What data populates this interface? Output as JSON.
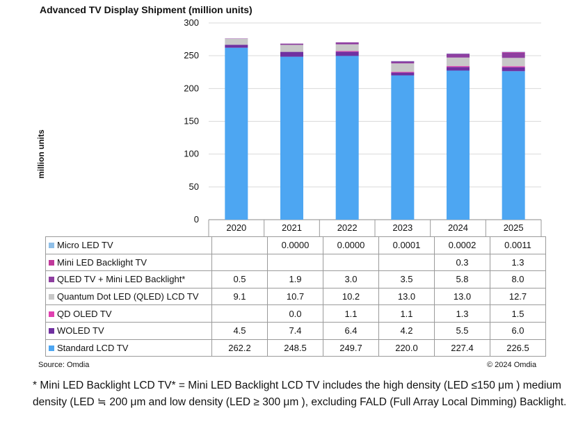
{
  "chart_data": {
    "type": "bar",
    "stacked": true,
    "title": "Advanced TV Display Shipment (million units)",
    "ylabel": "million units",
    "xlabel": "",
    "ylim": [
      0,
      300
    ],
    "yticks": [
      0,
      50,
      100,
      150,
      200,
      250,
      300
    ],
    "categories": [
      "2020",
      "2021",
      "2022",
      "2023",
      "2024",
      "2025"
    ],
    "series": [
      {
        "name": "Standard LCD TV",
        "color": "#4da6f2",
        "values": [
          262.2,
          248.5,
          249.7,
          220.0,
          227.4,
          226.5
        ],
        "labels": [
          "262.2",
          "248.5",
          "249.7",
          "220.0",
          "227.4",
          "226.5"
        ]
      },
      {
        "name": "WOLED TV",
        "color": "#7030a0",
        "values": [
          4.5,
          7.4,
          6.4,
          4.2,
          5.5,
          6.0
        ],
        "labels": [
          "4.5",
          "7.4",
          "6.4",
          "4.2",
          "5.5",
          "6.0"
        ]
      },
      {
        "name": "QD OLED TV",
        "color": "#e040b0",
        "values": [
          null,
          0.0,
          1.1,
          1.1,
          1.3,
          1.5
        ],
        "labels": [
          "",
          "0.0",
          "1.1",
          "1.1",
          "1.3",
          "1.5"
        ]
      },
      {
        "name": "Quantum Dot LED (QLED) LCD TV",
        "color": "#c8c8c8",
        "values": [
          9.1,
          10.7,
          10.2,
          13.0,
          13.0,
          12.7
        ],
        "labels": [
          "9.1",
          "10.7",
          "10.2",
          "13.0",
          "13.0",
          "12.7"
        ]
      },
      {
        "name": "QLED TV + Mini LED Backlight*",
        "color": "#8e3fa0",
        "values": [
          0.5,
          1.9,
          3.0,
          3.5,
          5.8,
          8.0
        ],
        "labels": [
          "0.5",
          "1.9",
          "3.0",
          "3.5",
          "5.8",
          "8.0"
        ]
      },
      {
        "name": "Mini LED Backlight TV",
        "color": "#c0399a",
        "values": [
          null,
          null,
          null,
          null,
          0.3,
          1.3
        ],
        "labels": [
          "",
          "",
          "",
          "",
          "0.3",
          "1.3"
        ]
      },
      {
        "name": "Micro LED TV",
        "color": "#8fbfe8",
        "values": [
          null,
          0.0,
          0.0,
          0.0001,
          0.0002,
          0.0011
        ],
        "labels": [
          "",
          "0.0000",
          "0.0000",
          "0.0001",
          "0.0002",
          "0.0011"
        ]
      }
    ],
    "table_row_order": [
      "Micro LED TV",
      "Mini LED Backlight TV",
      "QLED TV + Mini LED Backlight*",
      "Quantum Dot LED (QLED) LCD TV",
      "QD OLED TV",
      "WOLED TV",
      "Standard LCD TV"
    ]
  },
  "source": "Source: Omdia",
  "copyright": "© 2024 Omdia",
  "footnote": "* Mini LED Backlight LCD TV* = Mini LED Backlight LCD TV includes the high density (LED ≤150 μm ) medium density (LED ≒ 200 μm and low density (LED ≥ 300 μm ), excluding FALD (Full Array Local Dimming) Backlight."
}
